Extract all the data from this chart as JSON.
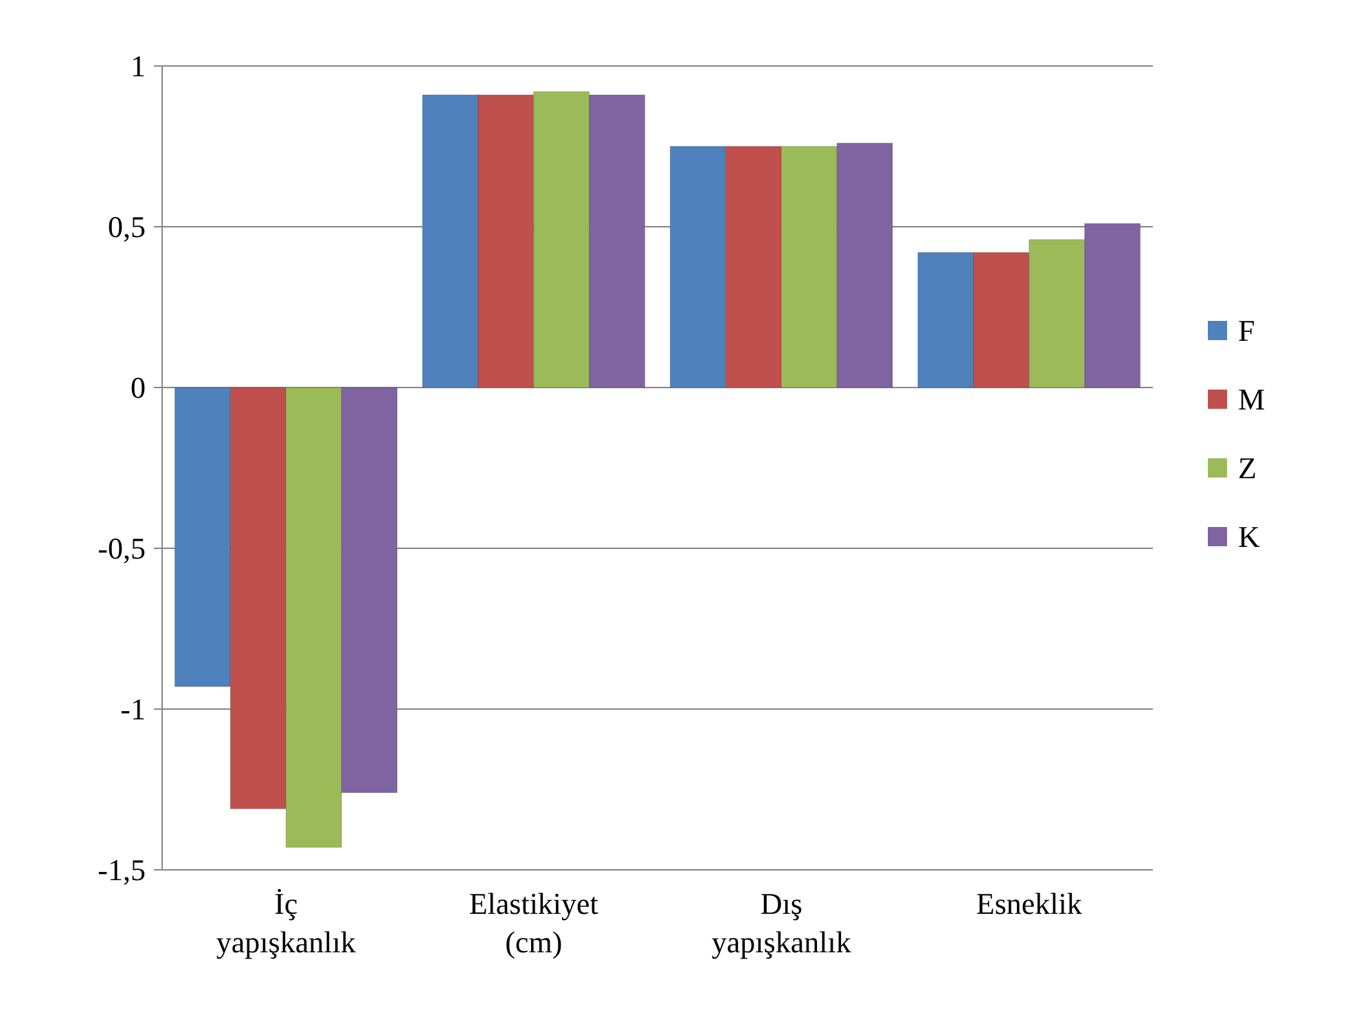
{
  "chart_data": {
    "type": "bar",
    "categories": [
      "İç yapışkanlık",
      "Elastikiyet (cm)",
      "Dış yapışkanlık",
      "Esneklik"
    ],
    "series": [
      {
        "name": "F",
        "color": "#4f81bd",
        "values": [
          -0.93,
          0.91,
          0.75,
          0.42
        ]
      },
      {
        "name": "M",
        "color": "#c0504d",
        "values": [
          -1.31,
          0.91,
          0.75,
          0.42
        ]
      },
      {
        "name": "Z",
        "color": "#9bbb59",
        "values": [
          -1.43,
          0.92,
          0.75,
          0.46
        ]
      },
      {
        "name": "K",
        "color": "#8064a2",
        "values": [
          -1.26,
          0.91,
          0.76,
          0.51
        ]
      }
    ],
    "ylim": [
      -1.5,
      1
    ],
    "yticks": [
      1,
      {
        "value": 0.5,
        "label": "0,5"
      },
      0,
      {
        "value": -0.5,
        "label": "-0,5"
      },
      -1,
      {
        "value": -1.5,
        "label": "-1,5"
      }
    ],
    "grid": "y",
    "legend": "right"
  }
}
